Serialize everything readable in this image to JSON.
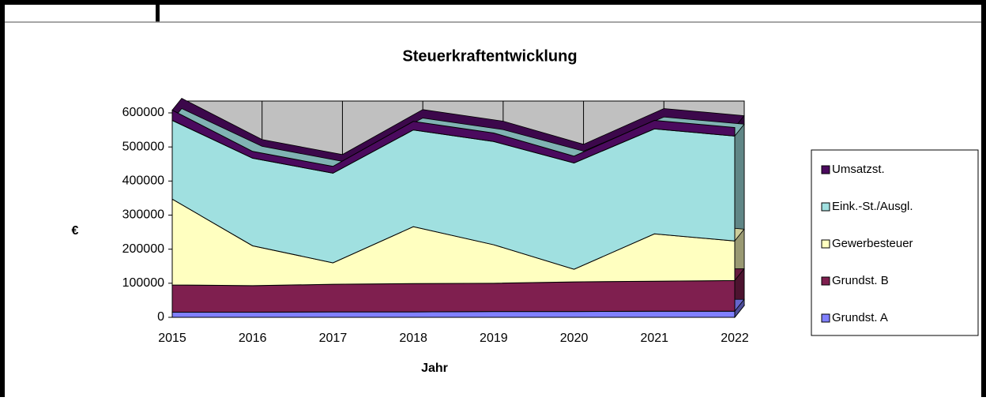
{
  "chart_data": {
    "type": "stacked_area_3d",
    "title": "Steuerkraftentwicklung",
    "x_label": "Jahr",
    "y_label": "€",
    "categories": [
      "2015",
      "2016",
      "2017",
      "2018",
      "2019",
      "2020",
      "2021",
      "2022"
    ],
    "series": [
      {
        "name": "Grundst. A",
        "color": "#8080ff",
        "values": [
          15000,
          15000,
          16000,
          16000,
          17000,
          17000,
          18000,
          18000
        ]
      },
      {
        "name": "Grundst. B",
        "color": "#7f1f4f",
        "values": [
          80000,
          78000,
          81000,
          83000,
          83000,
          87000,
          88000,
          90000
        ]
      },
      {
        "name": "Gewerbesteuer",
        "color": "#ffffc0",
        "values": [
          252000,
          117000,
          63000,
          167000,
          113000,
          37000,
          139000,
          116000
        ]
      },
      {
        "name": "Eink.-St./Ausgl.",
        "color": "#a0e0e0",
        "values": [
          231000,
          257000,
          263000,
          284000,
          303000,
          312000,
          308000,
          308000
        ]
      },
      {
        "name": "Umsatzst.",
        "color": "#4b0a5e",
        "values": [
          30000,
          20000,
          20000,
          25000,
          25000,
          20000,
          25000,
          25000
        ]
      }
    ],
    "ylim": [
      0,
      600000
    ],
    "yticks": [
      0,
      100000,
      200000,
      300000,
      400000,
      500000,
      600000
    ],
    "legend": "right"
  }
}
